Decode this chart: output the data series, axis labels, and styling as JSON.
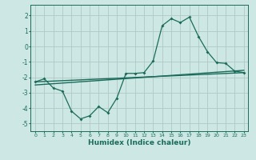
{
  "xlabel": "Humidex (Indice chaleur)",
  "background_color": "#cde8e4",
  "grid_color": "#b0c8c4",
  "line_color": "#1a6b5a",
  "xlim": [
    -0.5,
    23.5
  ],
  "ylim": [
    -5.5,
    2.7
  ],
  "yticks": [
    -5,
    -4,
    -3,
    -2,
    -1,
    0,
    1,
    2
  ],
  "xticks": [
    0,
    1,
    2,
    3,
    4,
    5,
    6,
    7,
    8,
    9,
    10,
    11,
    12,
    13,
    14,
    15,
    16,
    17,
    18,
    19,
    20,
    21,
    22,
    23
  ],
  "curve1_x": [
    0,
    1,
    2,
    3,
    4,
    5,
    6,
    7,
    8,
    9,
    10,
    11,
    12,
    13,
    14,
    15,
    16,
    17,
    18,
    19,
    20,
    21,
    22,
    23
  ],
  "curve1_y": [
    -2.3,
    -2.1,
    -2.7,
    -2.9,
    -4.2,
    -4.7,
    -4.5,
    -3.9,
    -4.3,
    -3.35,
    -1.75,
    -1.75,
    -1.7,
    -0.95,
    1.35,
    1.8,
    1.55,
    1.9,
    0.65,
    -0.35,
    -1.05,
    -1.1,
    -1.6,
    -1.7
  ],
  "line1_x": [
    0,
    23
  ],
  "line1_y": [
    -2.3,
    -1.7
  ],
  "line2_x": [
    0,
    23
  ],
  "line2_y": [
    -2.5,
    -1.55
  ]
}
